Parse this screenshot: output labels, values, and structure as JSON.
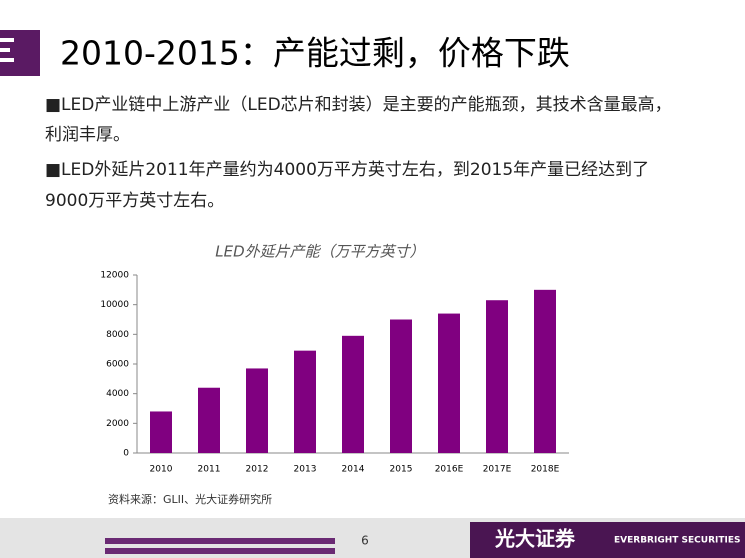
{
  "title": "2010-2015：产能过剩，价格下跌",
  "bullets": [
    [
      "■LED产业链中上游产业（LED芯片和封装）是主要的产能瓶颈，其技术含量最高，",
      "利润丰厚。"
    ],
    [
      "■LED外延片2011年产量约为4000万平方英寸左右，到2015年产量已经达到了",
      "9000万平方英寸左右。"
    ]
  ],
  "chart_data": {
    "type": "bar",
    "title": "LED外延片产能（万平方英寸）",
    "categories": [
      "2010",
      "2011",
      "2012",
      "2013",
      "2014",
      "2015",
      "2016E",
      "2017E",
      "2018E"
    ],
    "values": [
      2800,
      4400,
      5700,
      6900,
      7900,
      9000,
      9400,
      10300,
      11000
    ],
    "color": "#800080",
    "ylim": [
      0,
      12000
    ],
    "yticks": [
      0,
      2000,
      4000,
      6000,
      8000,
      10000,
      12000
    ],
    "grid": false
  },
  "source": "资料来源：GLII、光大证券研究所",
  "footer": {
    "page": "6",
    "brand_cn": "光大证券",
    "brand_en": "EVERBRIGHT SECURITIES"
  }
}
